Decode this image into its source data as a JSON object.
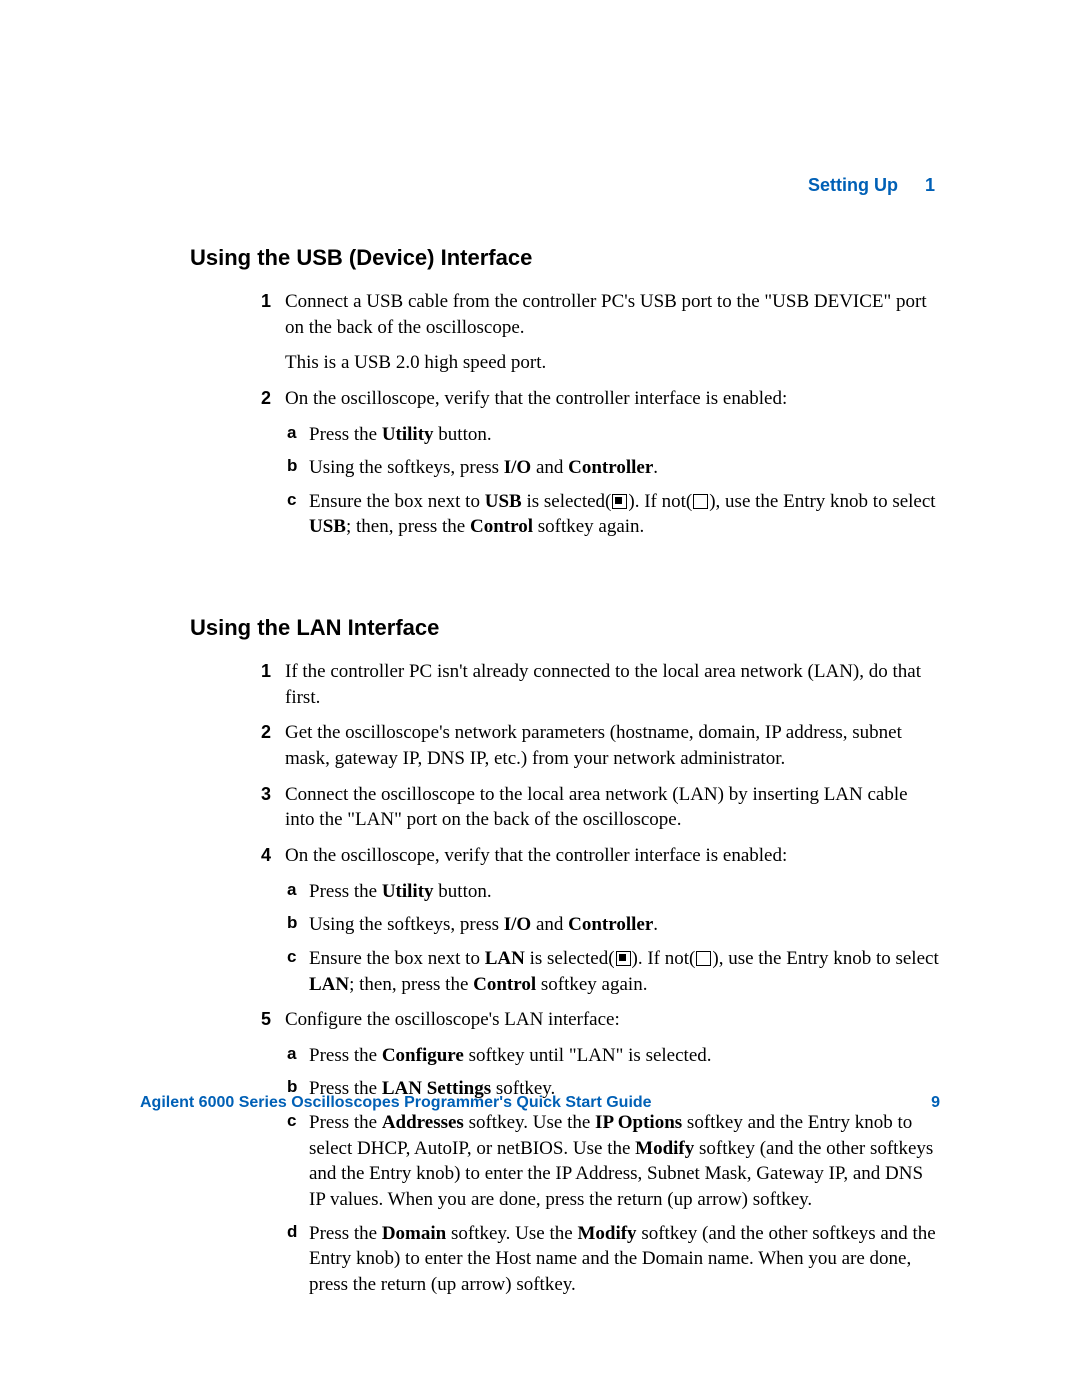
{
  "colors": {
    "accent": "#0060b6",
    "text": "#000000",
    "bg": "#ffffff"
  },
  "typography": {
    "heading_font": "Arial",
    "heading_weight": 700,
    "heading_size_pt": 16,
    "body_font": "Times New Roman",
    "body_size_pt": 14
  },
  "header": {
    "section": "Setting Up",
    "chapter_number": "1"
  },
  "sections": [
    {
      "title": "Using the USB (Device) Interface",
      "items": [
        {
          "n": "1",
          "paras": [
            "Connect a USB cable from the controller PC's USB port to the \"USB DEVICE\" port on the back of the oscilloscope.",
            "This is a USB 2.0 high speed port."
          ]
        },
        {
          "n": "2",
          "paras": [
            "On the oscilloscope, verify that the controller interface is enabled:"
          ],
          "sub": [
            {
              "m": "a",
              "html": "Press the <b class=\"ui\">Utility</b> button."
            },
            {
              "m": "b",
              "html": "Using the softkeys, press <b class=\"ui\">I/O</b> and <b class=\"ui\">Controller</b>."
            },
            {
              "m": "c",
              "html": "Ensure the box next to <b class=\"ui\">USB</b> is selected(<span class=\"checkbox filled\"></span>). If not(<span class=\"checkbox\"></span>), use the Entry knob to select <b class=\"ui\">USB</b>; then, press the <b class=\"ui\">Control</b> softkey again."
            }
          ]
        }
      ]
    },
    {
      "title": "Using the LAN Interface",
      "items": [
        {
          "n": "1",
          "paras": [
            "If the controller PC isn't already connected to the local area network (LAN), do that first."
          ]
        },
        {
          "n": "2",
          "paras": [
            "Get the oscilloscope's network parameters (hostname, domain, IP address, subnet mask, gateway IP, DNS IP, etc.) from your network administrator."
          ]
        },
        {
          "n": "3",
          "paras": [
            "Connect the oscilloscope to the local area network (LAN) by inserting LAN cable into the \"LAN\" port on the back of the oscilloscope."
          ]
        },
        {
          "n": "4",
          "paras": [
            "On the oscilloscope, verify that the controller interface is enabled:"
          ],
          "sub": [
            {
              "m": "a",
              "html": "Press the <b class=\"ui\">Utility</b> button."
            },
            {
              "m": "b",
              "html": "Using the softkeys, press <b class=\"ui\">I/O</b> and <b class=\"ui\">Controller</b>."
            },
            {
              "m": "c",
              "html": "Ensure the box next to <b class=\"ui\">LAN</b> is selected(<span class=\"checkbox filled\"></span>). If not(<span class=\"checkbox\"></span>), use the Entry knob to select <b class=\"ui\">LAN</b>; then, press the <b class=\"ui\">Control</b> softkey again."
            }
          ]
        },
        {
          "n": "5",
          "paras": [
            "Configure the oscilloscope's LAN interface:"
          ],
          "sub": [
            {
              "m": "a",
              "html": "Press the <b class=\"ui\">Configure</b> softkey until \"LAN\" is selected."
            },
            {
              "m": "b",
              "html": "Press the <b class=\"ui\">LAN Settings</b> softkey."
            },
            {
              "m": "c",
              "html": "Press the <b class=\"ui\">Addresses</b> softkey. Use the <b class=\"ui\">IP Options</b> softkey and the Entry knob to select DHCP, AutoIP, or netBIOS. Use the <b class=\"ui\">Modify</b> softkey (and the other softkeys and the Entry knob) to enter the IP Address, Subnet Mask, Gateway IP, and DNS IP values. When you are done, press the return (up arrow) softkey."
            },
            {
              "m": "d",
              "html": "Press the <b class=\"ui\">Domain</b> softkey. Use the <b class=\"ui\">Modify</b> softkey (and the other softkeys and the Entry knob) to enter the Host name and the Domain name. When you are done, press the return (up arrow) softkey."
            }
          ]
        }
      ]
    }
  ],
  "footer": {
    "title": "Agilent 6000 Series Oscilloscopes Programmer's Quick Start Guide",
    "page": "9"
  }
}
